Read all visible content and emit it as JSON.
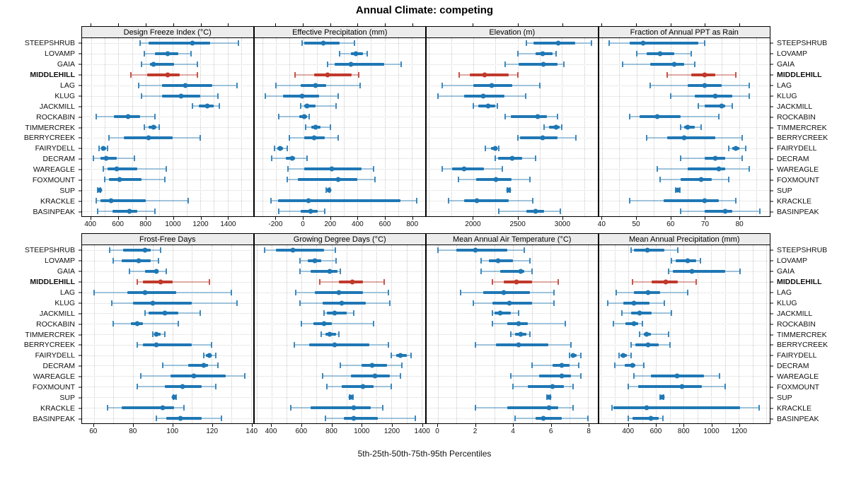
{
  "title": "Annual Climate: competing",
  "footer": "5th-25th-50th-75th-95th Percentiles",
  "sites": [
    "STEEPSHRUB",
    "LOVAMP",
    "GAIA",
    "MIDDLEHILL",
    "LAG",
    "KLUG",
    "JACKMILL",
    "ROCKABIN",
    "TIMMERCREK",
    "BERRYCREEK",
    "FAIRYDELL",
    "DECRAM",
    "WAREAGLE",
    "FOXMOUNT",
    "SUP",
    "KRACKLE",
    "BASINPEAK"
  ],
  "highlight_site": "MIDDLEHILL",
  "colors": {
    "series": "#1f77b4",
    "highlight": "#c0392b",
    "header_bg": "#ececec",
    "grid": "#c9c9c9",
    "row_line": "#d6d6d6",
    "axis": "#000000"
  },
  "percentile_labels": [
    "5th",
    "25th",
    "50th",
    "75th",
    "95th"
  ],
  "chart_data": [
    {
      "type": "scatter",
      "title": "Design Freeze Index (°C)",
      "xlim": [
        335,
        1585
      ],
      "xticks": [
        400,
        600,
        800,
        1000,
        1200,
        1400
      ],
      "rows": [
        [
          760,
          820,
          1140,
          1270,
          1480
        ],
        [
          790,
          870,
          960,
          1040,
          1130
        ],
        [
          770,
          830,
          860,
          1010,
          1180
        ],
        [
          690,
          810,
          960,
          1050,
          1180
        ],
        [
          750,
          920,
          1090,
          1290,
          1470
        ],
        [
          770,
          920,
          1060,
          1200,
          1330
        ],
        [
          1140,
          1190,
          1250,
          1300,
          1340
        ],
        [
          440,
          570,
          670,
          760,
          870
        ],
        [
          790,
          820,
          860,
          880,
          900
        ],
        [
          530,
          640,
          820,
          1000,
          1200
        ],
        [
          460,
          480,
          490,
          510,
          520
        ],
        [
          420,
          470,
          510,
          590,
          720
        ],
        [
          490,
          520,
          590,
          740,
          950
        ],
        [
          500,
          530,
          610,
          770,
          940
        ],
        [
          450,
          455,
          462,
          467,
          472
        ],
        [
          440,
          470,
          545,
          800,
          1110
        ],
        [
          450,
          560,
          680,
          740,
          870
        ]
      ]
    },
    {
      "type": "scatter",
      "title": "Effective Precipitation (mm)",
      "xlim": [
        -360,
        900
      ],
      "xticks": [
        -200,
        0,
        200,
        400,
        600,
        800
      ],
      "rows": [
        [
          -10,
          10,
          150,
          270,
          380
        ],
        [
          270,
          350,
          390,
          440,
          470
        ],
        [
          180,
          230,
          350,
          600,
          720
        ],
        [
          -60,
          80,
          180,
          360,
          410
        ],
        [
          -200,
          -20,
          90,
          170,
          420
        ],
        [
          -280,
          -150,
          -10,
          120,
          260
        ],
        [
          -20,
          10,
          30,
          90,
          240
        ],
        [
          -180,
          -30,
          10,
          30,
          45
        ],
        [
          20,
          60,
          90,
          130,
          200
        ],
        [
          -100,
          10,
          80,
          160,
          260
        ],
        [
          -210,
          -190,
          -170,
          -150,
          -120
        ],
        [
          -230,
          -130,
          -80,
          -60,
          30
        ],
        [
          -110,
          10,
          210,
          430,
          520
        ],
        [
          -120,
          -40,
          260,
          400,
          530
        ],
        [
          170,
          178,
          188,
          193,
          198
        ],
        [
          -240,
          -185,
          40,
          715,
          835
        ],
        [
          -180,
          -20,
          55,
          105,
          160
        ]
      ]
    },
    {
      "type": "scatter",
      "title": "Elevation (m)",
      "xlim": [
        1475,
        3400
      ],
      "xticks": [
        2000,
        2500,
        3000
      ],
      "rows": [
        [
          2600,
          2680,
          2960,
          3150,
          3330
        ],
        [
          2500,
          2700,
          2780,
          2890,
          2930
        ],
        [
          2360,
          2510,
          2790,
          2950,
          3020
        ],
        [
          1840,
          1960,
          2130,
          2400,
          2500
        ],
        [
          1650,
          2000,
          2210,
          2440,
          2750
        ],
        [
          1600,
          1900,
          2110,
          2350,
          2590
        ],
        [
          2000,
          2060,
          2170,
          2250,
          2270
        ],
        [
          2360,
          2420,
          2730,
          2830,
          2950
        ],
        [
          2800,
          2850,
          2930,
          2970,
          3000
        ],
        [
          2500,
          2530,
          2780,
          2950,
          3160
        ],
        [
          2140,
          2200,
          2250,
          2270,
          2290
        ],
        [
          2250,
          2280,
          2440,
          2550,
          2700
        ],
        [
          1650,
          1760,
          1900,
          2120,
          2330
        ],
        [
          1830,
          2030,
          2260,
          2430,
          2640
        ],
        [
          2380,
          2390,
          2400,
          2406,
          2412
        ],
        [
          1720,
          1900,
          2040,
          2400,
          2670
        ],
        [
          2290,
          2600,
          2700,
          2800,
          2980
        ]
      ]
    },
    {
      "type": "scatter",
      "title": "Fraction of Annual PPT as Rain",
      "xlim": [
        39,
        89
      ],
      "xticks": [
        40,
        50,
        60,
        70,
        80
      ],
      "rows": [
        [
          42,
          48,
          52,
          68,
          70
        ],
        [
          50,
          53,
          57,
          61,
          66
        ],
        [
          46,
          54,
          61,
          64,
          67
        ],
        [
          59,
          66,
          70,
          73,
          79
        ],
        [
          54,
          65,
          70,
          75,
          83
        ],
        [
          60,
          67,
          73,
          78,
          83
        ],
        [
          68,
          70,
          75,
          76,
          78
        ],
        [
          48,
          51,
          56,
          63,
          74
        ],
        [
          63,
          64,
          65,
          67,
          69
        ],
        [
          53,
          59,
          64,
          73,
          81
        ],
        [
          77,
          78,
          79,
          80,
          82
        ],
        [
          63,
          70,
          73,
          76,
          81
        ],
        [
          56,
          65,
          74,
          76,
          83
        ],
        [
          57,
          63,
          69,
          72,
          77
        ],
        [
          61.5,
          61.8,
          62.1,
          62.4,
          62.7
        ],
        [
          48,
          58,
          70,
          74,
          79
        ],
        [
          63,
          70,
          76,
          78,
          86
        ]
      ]
    },
    {
      "type": "scatter",
      "title": "Frost-Free Days",
      "xlim": [
        54,
        141
      ],
      "xticks": [
        60,
        80,
        100,
        120,
        140
      ],
      "rows": [
        [
          68,
          75,
          86,
          89,
          94
        ],
        [
          70,
          74,
          83,
          89,
          93
        ],
        [
          78,
          86,
          92,
          93,
          97
        ],
        [
          82,
          85,
          94,
          100,
          119
        ],
        [
          60,
          77,
          86,
          102,
          130
        ],
        [
          69,
          80,
          90,
          110,
          133
        ],
        [
          86,
          88,
          96,
          103,
          114
        ],
        [
          70,
          79,
          82,
          85,
          103
        ],
        [
          90,
          91,
          92,
          94,
          96
        ],
        [
          82,
          85,
          92,
          110,
          120
        ],
        [
          116,
          117,
          119,
          120,
          122
        ],
        [
          95,
          108,
          116,
          118,
          123
        ],
        [
          84,
          99,
          111,
          127,
          137
        ],
        [
          82,
          96,
          105,
          115,
          122
        ],
        [
          100.3,
          100.7,
          101,
          101.4,
          101.8
        ],
        [
          67,
          74,
          95,
          101,
          106
        ],
        [
          92,
          97,
          104,
          115,
          125
        ]
      ]
    },
    {
      "type": "scatter",
      "title": "Growing Degree Days (°C)",
      "xlim": [
        285,
        1425
      ],
      "xticks": [
        400,
        600,
        800,
        1000,
        1200,
        1400
      ],
      "rows": [
        [
          355,
          430,
          540,
          750,
          825
        ],
        [
          590,
          640,
          690,
          730,
          830
        ],
        [
          590,
          660,
          790,
          840,
          860
        ],
        [
          720,
          850,
          940,
          1010,
          1150
        ],
        [
          560,
          690,
          850,
          1010,
          1180
        ],
        [
          590,
          740,
          870,
          1030,
          1190
        ],
        [
          750,
          770,
          820,
          900,
          950
        ],
        [
          600,
          680,
          750,
          800,
          1080
        ],
        [
          730,
          760,
          790,
          830,
          850
        ],
        [
          550,
          650,
          820,
          1050,
          1180
        ],
        [
          1200,
          1230,
          1260,
          1300,
          1330
        ],
        [
          860,
          1000,
          1070,
          1170,
          1270
        ],
        [
          740,
          930,
          1090,
          1190,
          1260
        ],
        [
          770,
          870,
          1010,
          1080,
          1200
        ],
        [
          918,
          924,
          930,
          936,
          942
        ],
        [
          530,
          660,
          950,
          1060,
          1140
        ],
        [
          760,
          880,
          950,
          1110,
          1360
        ]
      ]
    },
    {
      "type": "scatter",
      "title": "Mean Annual Air Temperature (°C)",
      "xlim": [
        -0.6,
        8.5
      ],
      "xticks": [
        0,
        2,
        4,
        6,
        8
      ],
      "rows": [
        [
          0,
          1,
          2,
          3.7,
          4.6
        ],
        [
          2.3,
          2.7,
          3.2,
          4.0,
          4.9
        ],
        [
          2.3,
          3.3,
          4.4,
          4.6,
          5.0
        ],
        [
          2.9,
          3.5,
          4.2,
          5.0,
          6.4
        ],
        [
          1.2,
          2.4,
          3.5,
          4.9,
          6.2
        ],
        [
          1.9,
          2.9,
          3.8,
          5.0,
          6.2
        ],
        [
          2.9,
          3.0,
          3.3,
          3.9,
          4.3
        ],
        [
          2.9,
          3.7,
          4.3,
          4.8,
          6.8
        ],
        [
          3.9,
          4.1,
          4.4,
          4.7,
          4.9
        ],
        [
          2.0,
          3.1,
          4.3,
          5.9,
          7.1
        ],
        [
          7.0,
          7.1,
          7.2,
          7.4,
          7.6
        ],
        [
          5.0,
          6.1,
          6.6,
          7.0,
          7.5
        ],
        [
          3.9,
          5.4,
          6.6,
          7.1,
          7.6
        ],
        [
          4.0,
          4.8,
          6.1,
          6.7,
          7.2
        ],
        [
          5.8,
          5.86,
          5.9,
          5.94,
          6.0
        ],
        [
          2.0,
          3.7,
          5.9,
          6.4,
          7.2
        ],
        [
          4.1,
          5.2,
          5.6,
          6.6,
          8.0
        ]
      ]
    },
    {
      "type": "scatter",
      "title": "Mean Annual Precipitation (mm)",
      "xlim": [
        185,
        1425
      ],
      "xticks": [
        400,
        600,
        800,
        1000,
        1200
      ],
      "rows": [
        [
          420,
          440,
          535,
          660,
          760
        ],
        [
          710,
          740,
          830,
          890,
          920
        ],
        [
          690,
          720,
          860,
          1100,
          1210
        ],
        [
          430,
          570,
          670,
          760,
          890
        ],
        [
          310,
          440,
          540,
          630,
          830
        ],
        [
          250,
          360,
          440,
          550,
          660
        ],
        [
          350,
          420,
          480,
          570,
          710
        ],
        [
          290,
          380,
          440,
          470,
          500
        ],
        [
          480,
          510,
          530,
          560,
          690
        ],
        [
          420,
          450,
          540,
          620,
          700
        ],
        [
          330,
          340,
          360,
          390,
          420
        ],
        [
          300,
          370,
          430,
          450,
          510
        ],
        [
          440,
          560,
          750,
          950,
          1060
        ],
        [
          400,
          470,
          790,
          930,
          1100
        ],
        [
          630,
          636,
          642,
          648,
          654
        ],
        [
          280,
          290,
          530,
          1210,
          1350
        ],
        [
          400,
          430,
          560,
          620,
          650
        ]
      ]
    }
  ]
}
